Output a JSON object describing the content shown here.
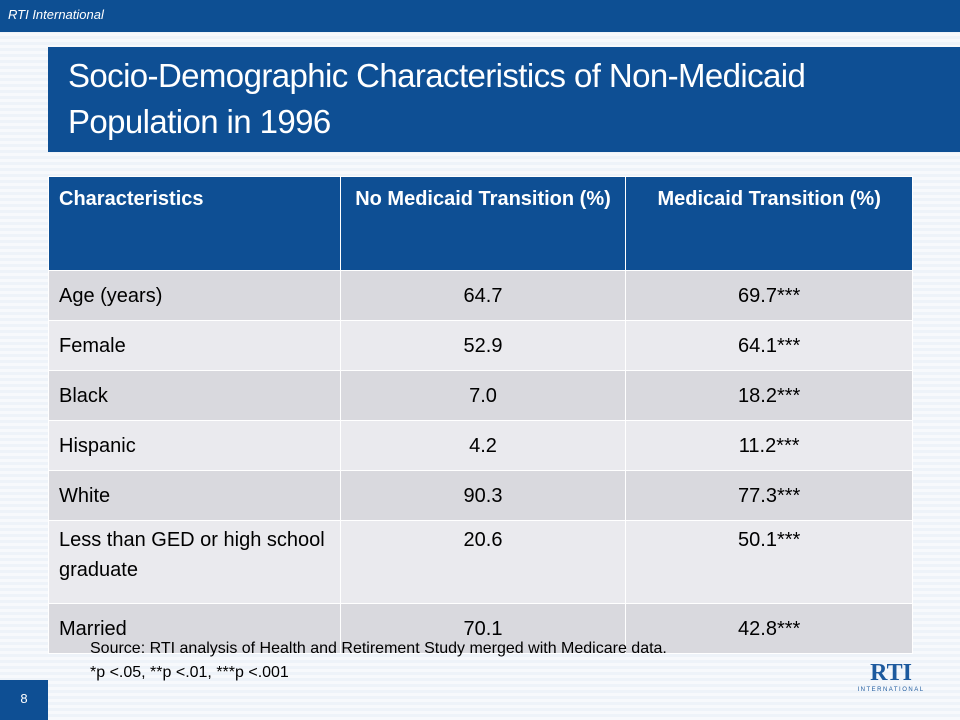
{
  "header": {
    "org": "RTI International",
    "title": "Socio-Demographic Characteristics of Non-Medicaid Population in 1996"
  },
  "table": {
    "columns": [
      "Characteristics",
      "No Medicaid Transition (%)",
      "Medicaid Transition (%)"
    ],
    "rows": [
      [
        "Age (years)",
        "64.7",
        "69.7***"
      ],
      [
        "Female",
        "52.9",
        "64.1***"
      ],
      [
        "Black",
        "7.0",
        "18.2***"
      ],
      [
        "Hispanic",
        "4.2",
        "11.2***"
      ],
      [
        "White",
        "90.3",
        "77.3***"
      ],
      [
        "Less than GED or high school graduate",
        "20.6",
        "50.1***"
      ],
      [
        "Married",
        "70.1",
        "42.8***"
      ]
    ]
  },
  "footer": {
    "source": "Source:  RTI analysis of Health and Retirement Study merged with Medicare data.",
    "note": "*p <.05, **p <.01, ***p <.001",
    "page": "8",
    "logo": "RTI",
    "logo_sub": "INTERNATIONAL"
  }
}
